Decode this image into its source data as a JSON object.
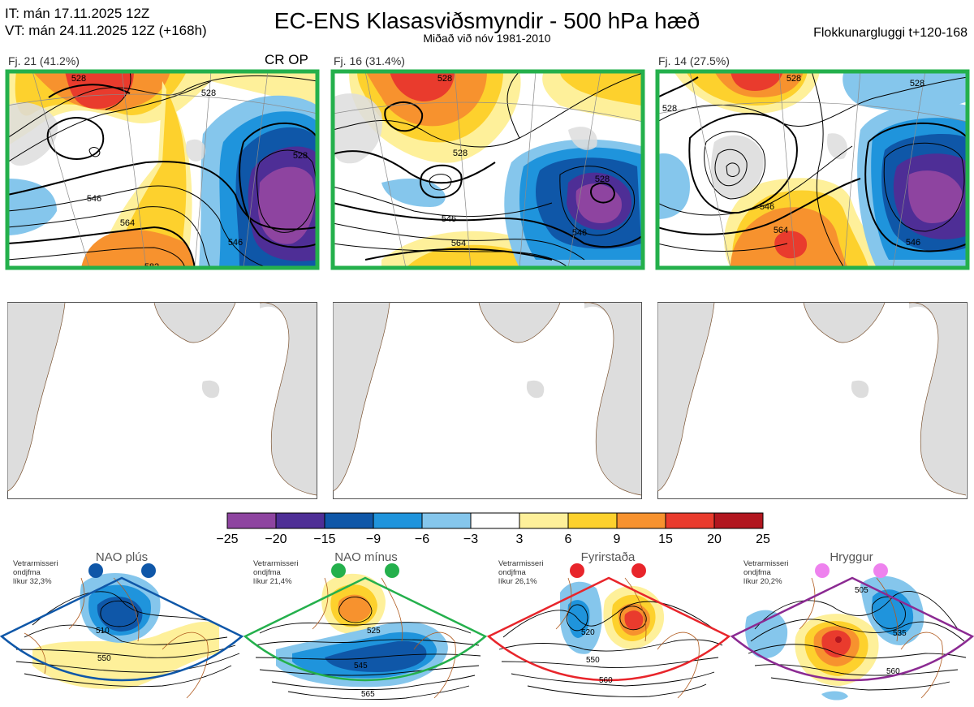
{
  "header": {
    "it_line": "IT: mán 17.11.2025 12Z",
    "vt_line": "VT: mán 24.11.2025 12Z  (+168h)",
    "title": "EC-ENS Klasasviðsmyndir - 500 hPa hæð",
    "subtitle": "Miðað við nóv 1981-2010",
    "window": "Flokkunargluggi t+120-168"
  },
  "panels": [
    {
      "label": "Fj. 21 (41.2%)",
      "tag": "CR OP",
      "contours": [
        "528",
        "546",
        "564",
        "582",
        "528",
        "546",
        "528"
      ]
    },
    {
      "label": "Fj. 16 (31.4%)",
      "tag": "",
      "contours": [
        "528",
        "528",
        "546",
        "564",
        "528",
        "546"
      ]
    },
    {
      "label": "Fj. 14 (27.5%)",
      "tag": "",
      "contours": [
        "528",
        "528",
        "546",
        "564",
        "546",
        "528"
      ]
    }
  ],
  "colorbar": {
    "ticks": [
      "−25",
      "−20",
      "−15",
      "−9",
      "−6",
      "−3",
      "3",
      "6",
      "9",
      "15",
      "20",
      "25"
    ],
    "colors": [
      "#8e44a0",
      "#4e2e96",
      "#0f57a8",
      "#1f94dc",
      "#85c6ec",
      "#ffffff",
      "#fef09a",
      "#fdd12d",
      "#f7922e",
      "#e93b2d",
      "#b2161f"
    ]
  },
  "regimes": [
    {
      "name": "NAO plús",
      "note1": "Vetrarmisseri",
      "note2": "ondjfma",
      "note3": "líkur 32,3%",
      "dot": "#0f57a8",
      "frame": "#0f57a8",
      "labels": [
        "510",
        "550"
      ]
    },
    {
      "name": "NAO mínus",
      "note1": "Vetrarmisseri",
      "note2": "ondjfma",
      "note3": "líkur 21,4%",
      "dot": "#24b04c",
      "frame": "#24b04c",
      "labels": [
        "525",
        "545",
        "565"
      ]
    },
    {
      "name": "Fyrirstaða",
      "note1": "Vetrarmisseri",
      "note2": "ondjfma",
      "note3": "líkur 26,1%",
      "dot": "#e8252b",
      "frame": "#e8252b",
      "labels": [
        "520",
        "550",
        "560"
      ]
    },
    {
      "name": "Hryggur",
      "note1": "Vetrarmisseri",
      "note2": "ondjfma",
      "note3": "líkur 20,2%",
      "dot": "#ee82ee",
      "frame": "#8b2a92",
      "labels": [
        "505",
        "535",
        "560"
      ]
    }
  ],
  "chart_data": {
    "type": "heatmap",
    "title": "EC-ENS Klasasviðsmyndir - 500 hPa hæð",
    "subtitle": "Miðað við nóv 1981-2010",
    "clusters": [
      {
        "name": "Fj. 21",
        "percent": 41.2,
        "tag": "CR OP"
      },
      {
        "name": "Fj. 16",
        "percent": 31.4
      },
      {
        "name": "Fj. 14",
        "percent": 27.5
      }
    ],
    "colorbar_levels": [
      -25,
      -20,
      -15,
      -9,
      -6,
      -3,
      3,
      6,
      9,
      15,
      20,
      25
    ],
    "regimes": [
      {
        "name": "NAO plús",
        "probability": 32.3
      },
      {
        "name": "NAO mínus",
        "probability": 21.4
      },
      {
        "name": "Fyrirstaða",
        "probability": 26.1
      },
      {
        "name": "Hryggur",
        "probability": 20.2
      }
    ]
  }
}
